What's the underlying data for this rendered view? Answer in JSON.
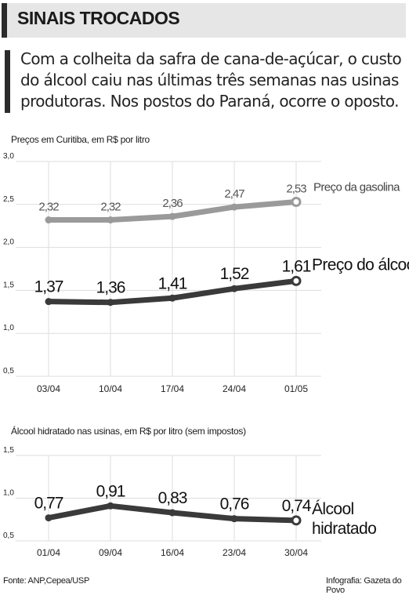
{
  "header": {
    "title": "SINAIS TROCADOS",
    "lead": "Com a colheita da safra de cana-de-açúcar, o custo do álcool caiu nas últimas três semanas nas usinas produtoras. Nos postos do Paraná, ocorre o oposto."
  },
  "chart_data": [
    {
      "type": "line",
      "title": "Preços em Curitiba, em R$ por litro",
      "categories": [
        "03/04",
        "10/04",
        "17/04",
        "24/04",
        "01/05"
      ],
      "ylim": [
        0.5,
        3.0
      ],
      "yticks": [
        "3,0",
        "2,5",
        "2,0",
        "1,5",
        "1,0",
        "0,5"
      ],
      "grid": true,
      "series": [
        {
          "name": "Preço da gasolina",
          "values": [
            2.32,
            2.32,
            2.36,
            2.47,
            2.53
          ],
          "labels": [
            "2,32",
            "2,32",
            "2,36",
            "2,47",
            "2,53"
          ],
          "color": "#9a9a9a"
        },
        {
          "name": "Preço do álcool",
          "values": [
            1.37,
            1.36,
            1.41,
            1.52,
            1.61
          ],
          "labels": [
            "1,37",
            "1,36",
            "1,41",
            "1,52",
            "1,61"
          ],
          "color": "#3a3a3a"
        }
      ]
    },
    {
      "type": "line",
      "title": "Álcool hidratado nas usinas, em R$ por litro (sem impostos)",
      "categories": [
        "01/04",
        "09/04",
        "16/04",
        "23/04",
        "30/04"
      ],
      "ylim": [
        0.5,
        1.5
      ],
      "yticks": [
        "1,5",
        "1,0",
        "0,5"
      ],
      "grid": true,
      "series": [
        {
          "name": "Álcool hidratado",
          "name_lines": [
            "Álcool",
            "hidratado"
          ],
          "values": [
            0.77,
            0.91,
            0.83,
            0.76,
            0.74
          ],
          "labels": [
            "0,77",
            "0,91",
            "0,83",
            "0,76",
            "0,74"
          ],
          "color": "#3a3a3a"
        }
      ]
    }
  ],
  "footer": {
    "source": "Fonte: ANP,Cepea/USP",
    "credit": "Infografia: Gazeta do Povo"
  }
}
